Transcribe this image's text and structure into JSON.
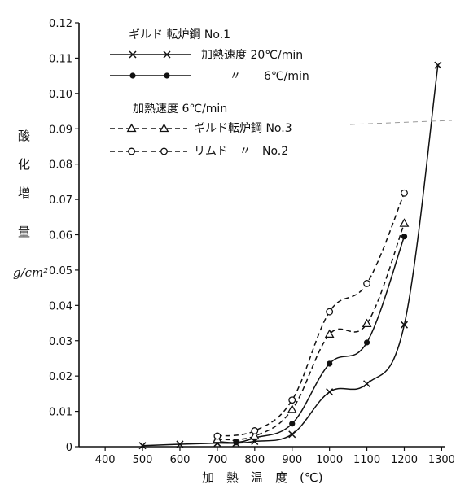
{
  "chart_data": {
    "type": "line",
    "xlabel": "加　熱　温　度　(℃)",
    "ylabel_chars": [
      "酸",
      "化",
      "増",
      "量"
    ],
    "yunit": "g/cm²",
    "xlim": [
      330,
      1310
    ],
    "ylim": [
      0,
      0.12
    ],
    "x_ticks": [
      400,
      500,
      600,
      700,
      800,
      900,
      1000,
      1100,
      1200,
      1300
    ],
    "y_ticks": [
      0,
      0.01,
      0.02,
      0.03,
      0.04,
      0.05,
      0.06,
      0.07,
      0.08,
      0.09,
      0.1,
      0.11,
      0.12
    ],
    "y_tick_labels": [
      "0",
      "0.01",
      "0.02",
      "0.03",
      "0.04",
      "0.05",
      "0.06",
      "0.07",
      "0.08",
      "0.09",
      "0.10",
      "0.11",
      "0.12"
    ],
    "legend": {
      "group1_title": "ギルド 転炉鋼 No.1",
      "group1_entries": [
        "加熱速度 20℃/min",
        "〃　　6℃/min"
      ],
      "group2_title": "加熱速度 6℃/min",
      "group2_entries": [
        "ギルド転炉鋼 No.3",
        "リムド　〃　No.2"
      ]
    },
    "series": [
      {
        "key": "s20",
        "color": "#111111",
        "dash": "solid",
        "marker": "x",
        "x": [
          500,
          600,
          700,
          750,
          800,
          900,
          1000,
          1100,
          1200,
          1290
        ],
        "y": [
          0.0003,
          0.0007,
          0.001,
          0.001,
          0.0015,
          0.0035,
          0.0155,
          0.0178,
          0.0345,
          0.108
        ]
      },
      {
        "key": "s6",
        "color": "#111111",
        "dash": "solid",
        "marker": "dot",
        "x": [
          700,
          750,
          800,
          900,
          1000,
          1100,
          1200
        ],
        "y": [
          0.0015,
          0.0012,
          0.0025,
          0.0065,
          0.0235,
          0.0295,
          0.0595
        ]
      },
      {
        "key": "no3",
        "color": "#111111",
        "dash": "dashed",
        "marker": "triangle",
        "x": [
          700,
          800,
          900,
          1000,
          1100,
          1200
        ],
        "y": [
          0.002,
          0.003,
          0.0105,
          0.0318,
          0.0348,
          0.0632
        ]
      },
      {
        "key": "no2",
        "color": "#111111",
        "dash": "dashed",
        "marker": "circle",
        "x": [
          700,
          800,
          900,
          1000,
          1100,
          1200
        ],
        "y": [
          0.003,
          0.0045,
          0.0132,
          0.0382,
          0.0462,
          0.0718
        ]
      }
    ],
    "grid": false
  }
}
